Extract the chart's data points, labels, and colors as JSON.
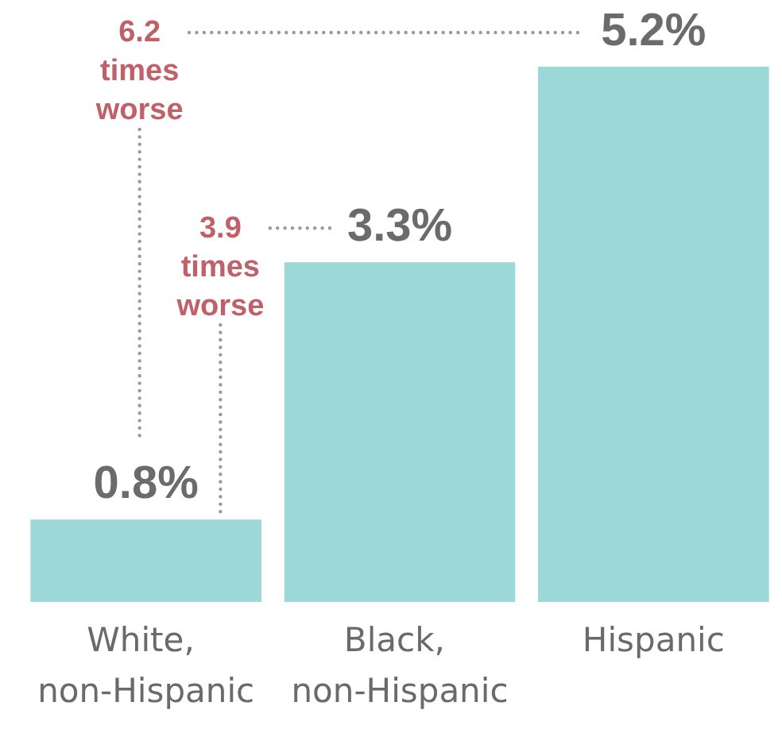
{
  "chart_data": {
    "type": "bar",
    "categories": [
      "White, non-Hispanic",
      "Black, non-Hispanic",
      "Hispanic"
    ],
    "values": [
      0.8,
      3.3,
      5.2
    ],
    "value_labels": [
      "0.8%",
      "3.3%",
      "5.2%"
    ],
    "color": "#9cd8d8",
    "annotations": [
      "6.2 times worse",
      "3.9 times worse"
    ]
  }
}
